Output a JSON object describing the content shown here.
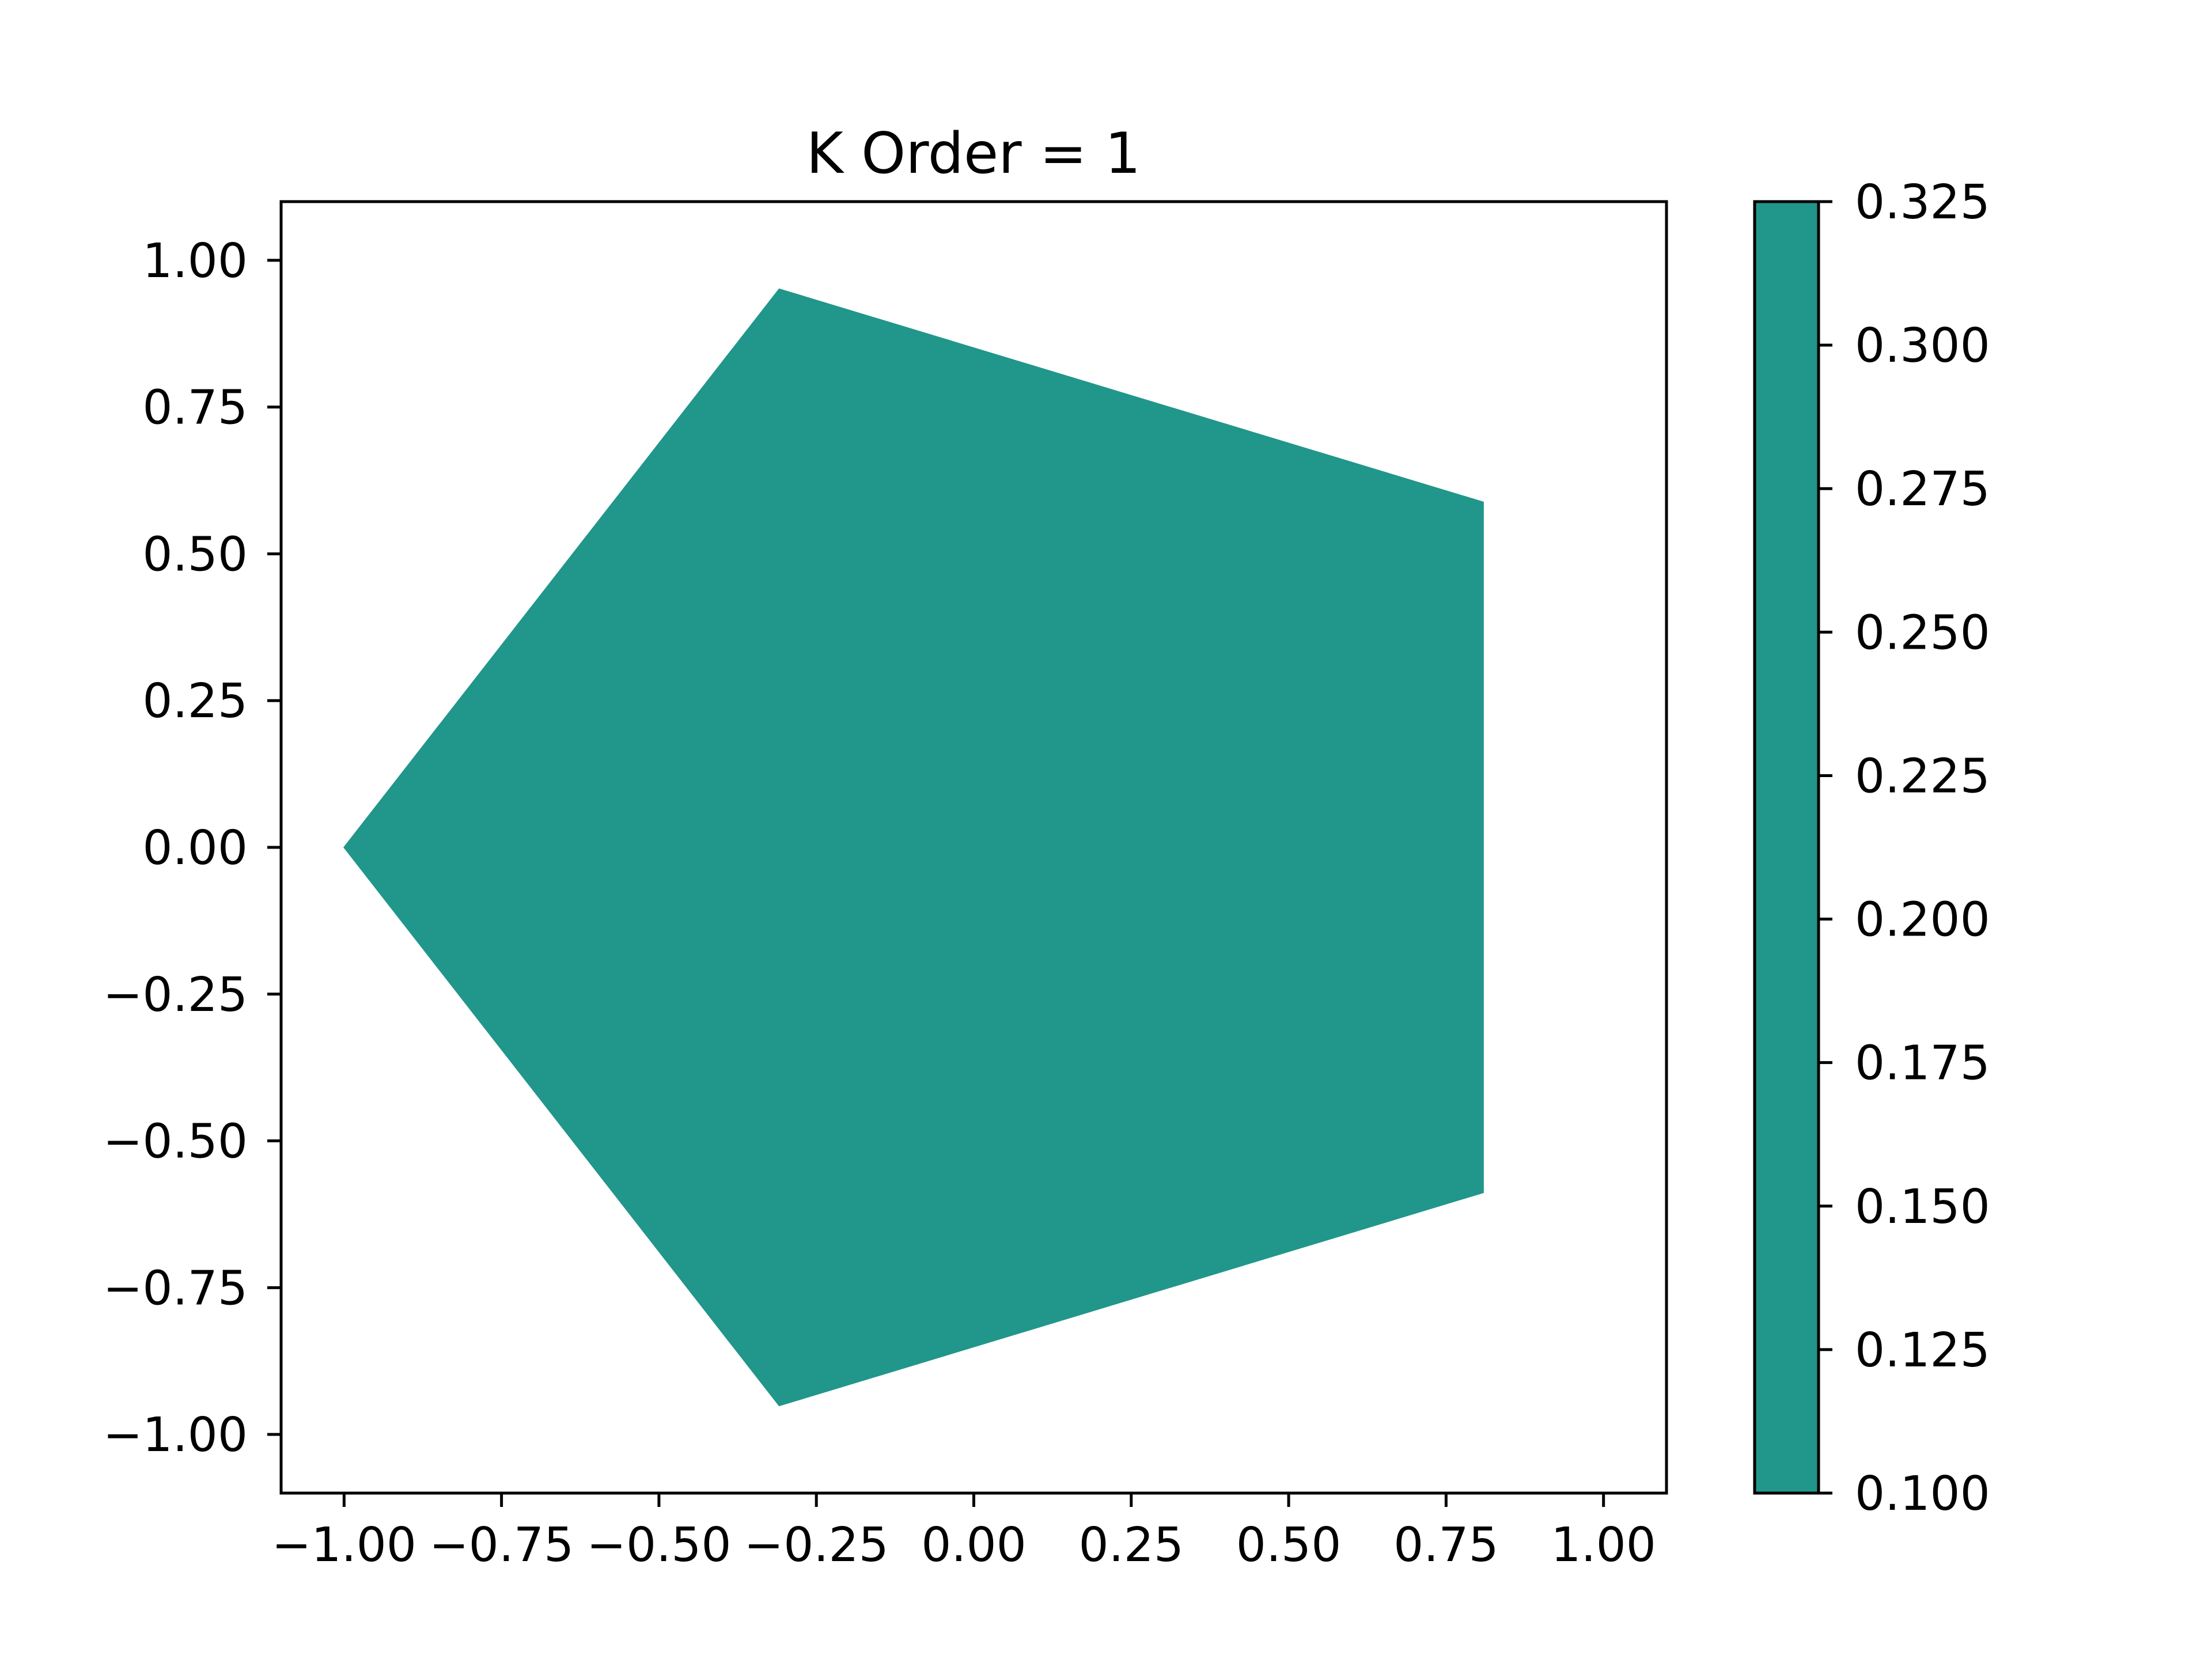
{
  "chart_data": {
    "type": "heatmap",
    "title": "K Order = 1",
    "xlabel": "",
    "ylabel": "",
    "xlim": [
      -1.1,
      1.1
    ],
    "ylim": [
      -1.1,
      1.1
    ],
    "x_ticks": [
      "−1.00",
      "−0.75",
      "−0.50",
      "−0.25",
      "0.00",
      "0.25",
      "0.50",
      "0.75",
      "1.00"
    ],
    "x_tick_values": [
      -1.0,
      -0.75,
      -0.5,
      -0.25,
      0.0,
      0.25,
      0.5,
      0.75,
      1.0
    ],
    "y_ticks": [
      "1.00",
      "0.75",
      "0.50",
      "0.25",
      "0.00",
      "−0.25",
      "−0.50",
      "−0.75",
      "−1.00"
    ],
    "y_tick_values": [
      1.0,
      0.75,
      0.5,
      0.25,
      0.0,
      -0.25,
      -0.5,
      -0.75,
      -1.0
    ],
    "grid": false,
    "polygon": {
      "vertices": [
        [
          -1.0,
          0.0
        ],
        [
          -0.309,
          0.951
        ],
        [
          0.809,
          0.588
        ],
        [
          0.809,
          -0.588
        ],
        [
          -0.309,
          -0.951
        ]
      ],
      "value": 0.2125,
      "fill_color": "#21968b"
    },
    "colorbar": {
      "range": [
        0.1,
        0.325
      ],
      "ticks": [
        "0.100",
        "0.125",
        "0.150",
        "0.175",
        "0.200",
        "0.225",
        "0.250",
        "0.275",
        "0.300",
        "0.325"
      ],
      "tick_values": [
        0.1,
        0.125,
        0.15,
        0.175,
        0.2,
        0.225,
        0.25,
        0.275,
        0.3,
        0.325
      ],
      "fill_color": "#21968b"
    }
  }
}
